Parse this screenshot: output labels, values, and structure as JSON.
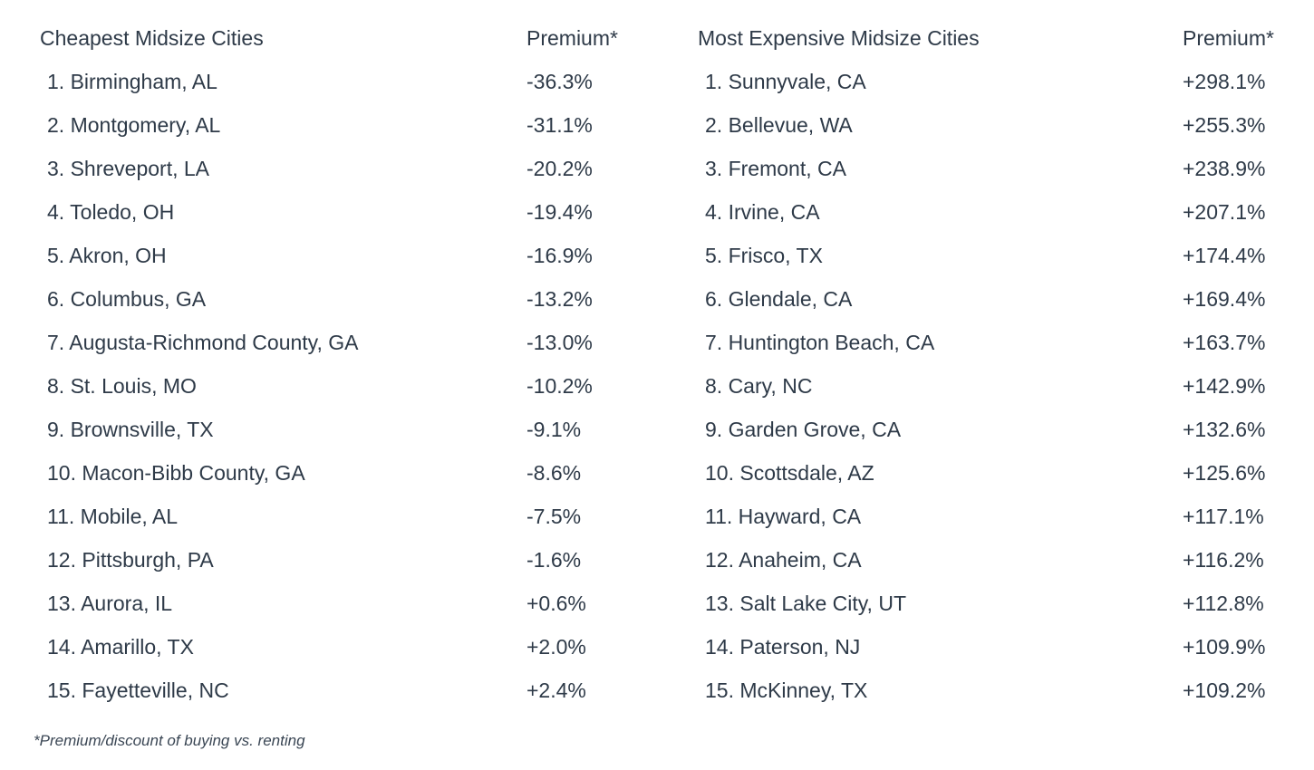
{
  "cheapest": {
    "heading": "Cheapest Midsize Cities",
    "premium_heading": "Premium*",
    "rows": [
      {
        "city": "1. Birmingham, AL",
        "premium": "-36.3%"
      },
      {
        "city": "2. Montgomery, AL",
        "premium": "-31.1%"
      },
      {
        "city": "3. Shreveport, LA",
        "premium": "-20.2%"
      },
      {
        "city": "4. Toledo, OH",
        "premium": "-19.4%"
      },
      {
        "city": "5. Akron, OH",
        "premium": "-16.9%"
      },
      {
        "city": "6. Columbus, GA",
        "premium": "-13.2%"
      },
      {
        "city": "7. Augusta-Richmond County, GA",
        "premium": "-13.0%"
      },
      {
        "city": "8. St. Louis, MO",
        "premium": "-10.2%"
      },
      {
        "city": "9. Brownsville, TX",
        "premium": "-9.1%"
      },
      {
        "city": "10. Macon-Bibb County, GA",
        "premium": "-8.6%"
      },
      {
        "city": "11. Mobile, AL",
        "premium": "-7.5%"
      },
      {
        "city": "12. Pittsburgh, PA",
        "premium": "-1.6%"
      },
      {
        "city": "13. Aurora, IL",
        "premium": "+0.6%"
      },
      {
        "city": "14. Amarillo, TX",
        "premium": "+2.0%"
      },
      {
        "city": "15. Fayetteville, NC",
        "premium": "+2.4%"
      }
    ]
  },
  "expensive": {
    "heading": "Most Expensive Midsize Cities",
    "premium_heading": "Premium*",
    "rows": [
      {
        "city": "1. Sunnyvale, CA",
        "premium": "+298.1%"
      },
      {
        "city": "2. Bellevue, WA",
        "premium": "+255.3%"
      },
      {
        "city": "3. Fremont, CA",
        "premium": "+238.9%"
      },
      {
        "city": "4. Irvine, CA",
        "premium": "+207.1%"
      },
      {
        "city": "5. Frisco, TX",
        "premium": "+174.4%"
      },
      {
        "city": "6. Glendale, CA",
        "premium": "+169.4%"
      },
      {
        "city": "7. Huntington Beach, CA",
        "premium": "+163.7%"
      },
      {
        "city": "8. Cary, NC",
        "premium": "+142.9%"
      },
      {
        "city": "9. Garden Grove, CA",
        "premium": "+132.6%"
      },
      {
        "city": "10. Scottsdale, AZ",
        "premium": "+125.6%"
      },
      {
        "city": "11. Hayward, CA",
        "premium": "+117.1%"
      },
      {
        "city": "12. Anaheim, CA",
        "premium": "+116.2%"
      },
      {
        "city": "13. Salt Lake City, UT",
        "premium": "+112.8%"
      },
      {
        "city": "14. Paterson, NJ",
        "premium": "+109.9%"
      },
      {
        "city": "15. McKinney, TX",
        "premium": "+109.2%"
      }
    ]
  },
  "footnote": "*Premium/discount of buying vs. renting",
  "colors": {
    "text": "#2e3a48",
    "background": "#ffffff"
  }
}
